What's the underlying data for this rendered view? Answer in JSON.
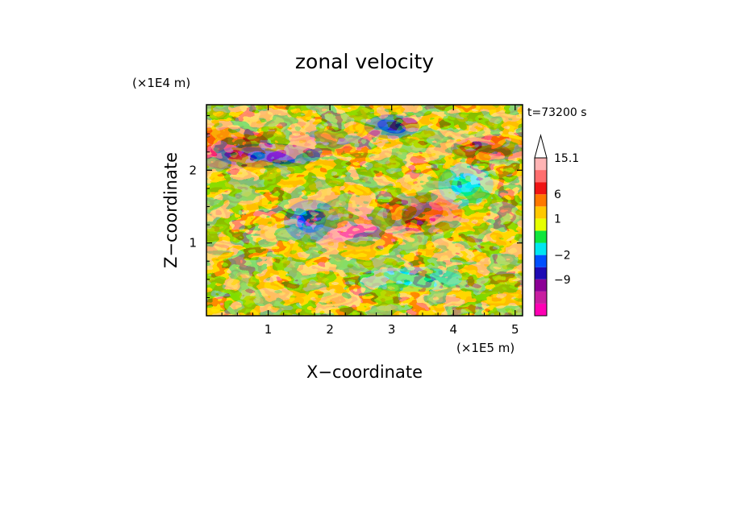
{
  "chart_data": {
    "type": "heatmap",
    "title": "zonal velocity",
    "xlabel": "X−coordinate",
    "ylabel": "Z−coordinate",
    "x_unit_label": "(×1E5 m)",
    "y_unit_label": "(×1E4 m)",
    "time_label": "t=73200 s",
    "xlim": [
      0,
      5.12
    ],
    "ylim": [
      0,
      2.9
    ],
    "x_ticks": [
      1,
      2,
      3,
      4,
      5
    ],
    "x_tick_labels": [
      "1",
      "2",
      "3",
      "4",
      "5"
    ],
    "y_ticks": [
      1,
      2
    ],
    "y_tick_labels": [
      "1",
      "2"
    ],
    "colorbar": {
      "levels": [
        -15,
        -12,
        -9,
        -6,
        -2,
        -1,
        0,
        1,
        3,
        6,
        9,
        12,
        15.1
      ],
      "tick_values": [
        15.1,
        6,
        1,
        -2,
        -9
      ],
      "tick_labels": [
        "15.1",
        "6",
        "1",
        "−2",
        "−9"
      ],
      "colors": [
        "#ff00b4",
        "#c81ea0",
        "#8c0096",
        "#1e0ab4",
        "#0050ff",
        "#00e6f0",
        "#10e63c",
        "#e6ff00",
        "#ffc800",
        "#ff7800",
        "#f01414",
        "#ff6e6e",
        "#ffb4b4"
      ],
      "extend_max": true
    },
    "field_features": [
      {
        "x": 0.5,
        "z": 0.5,
        "value": 1.5
      },
      {
        "x": 0.4,
        "z": 2.3,
        "value": 6
      },
      {
        "x": 1.0,
        "z": 2.2,
        "value": -9
      },
      {
        "x": 1.7,
        "z": 1.3,
        "value": -6
      },
      {
        "x": 2.0,
        "z": 2.4,
        "value": 9
      },
      {
        "x": 2.4,
        "z": 1.2,
        "value": 9
      },
      {
        "x": 3.0,
        "z": 2.6,
        "value": -9
      },
      {
        "x": 3.5,
        "z": 1.4,
        "value": 6
      },
      {
        "x": 3.3,
        "z": 0.5,
        "value": -2
      },
      {
        "x": 4.2,
        "z": 1.8,
        "value": -2
      },
      {
        "x": 4.6,
        "z": 2.3,
        "value": 6
      }
    ]
  }
}
